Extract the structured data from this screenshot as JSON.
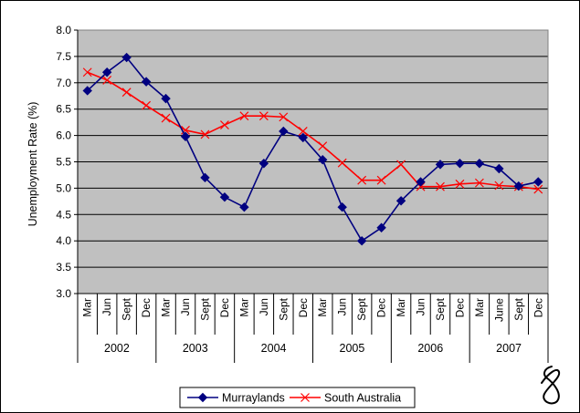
{
  "chart_data": {
    "type": "line",
    "ylabel": "Unemployment Rate (%)",
    "ylim": [
      3.0,
      8.0
    ],
    "ytick_step": 0.5,
    "ytick_labels": [
      "3.0",
      "3.5",
      "4.0",
      "4.5",
      "5.0",
      "5.5",
      "6.0",
      "6.5",
      "7.0",
      "7.5",
      "8.0"
    ],
    "categories": [
      "Mar",
      "Jun",
      "Sept",
      "Dec",
      "Mar",
      "Jun",
      "Sept",
      "Dec",
      "Mar",
      "Jun",
      "Sept",
      "Dec",
      "Mar",
      "Jun",
      "Sept",
      "Dec",
      "Mar",
      "Jun",
      "Sept",
      "Dec",
      "Mar",
      "June",
      "Sept",
      "Dec"
    ],
    "year_groups": [
      {
        "label": "2002",
        "count": 4
      },
      {
        "label": "2003",
        "count": 4
      },
      {
        "label": "2004",
        "count": 4
      },
      {
        "label": "2005",
        "count": 4
      },
      {
        "label": "2006",
        "count": 4
      },
      {
        "label": "2007",
        "count": 4
      }
    ],
    "grid": true,
    "legend_position": "bottom",
    "plot_background": "#c0c0c0",
    "series": [
      {
        "name": "Murraylands",
        "color": "#000080",
        "marker": "diamond",
        "values": [
          6.85,
          7.2,
          7.48,
          7.02,
          6.7,
          5.98,
          5.2,
          4.83,
          4.64,
          5.47,
          6.08,
          5.96,
          5.54,
          4.64,
          4.0,
          4.25,
          4.76,
          5.12,
          5.45,
          5.47,
          5.47,
          5.37,
          5.04,
          5.12
        ]
      },
      {
        "name": "South Australia",
        "color": "#ff0000",
        "marker": "x",
        "values": [
          7.2,
          7.05,
          6.82,
          6.57,
          6.33,
          6.1,
          6.02,
          6.2,
          6.37,
          6.37,
          6.35,
          6.08,
          5.8,
          5.48,
          5.15,
          5.15,
          5.45,
          5.03,
          5.03,
          5.08,
          5.1,
          5.05,
          5.03,
          4.98
        ]
      }
    ]
  },
  "signature": {
    "glyph": "signature-mark"
  }
}
